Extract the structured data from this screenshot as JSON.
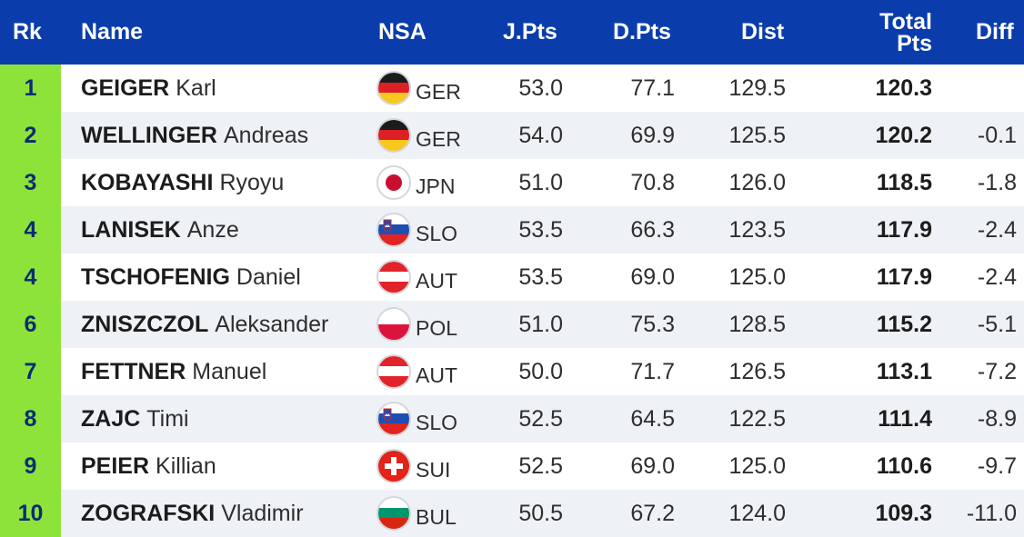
{
  "headers": {
    "rk": "Rk",
    "name": "Name",
    "nsa": "NSA",
    "jpts": "J.Pts",
    "dpts": "D.Pts",
    "dist": "Dist",
    "total_line1": "Total",
    "total_line2": "Pts",
    "diff": "Diff"
  },
  "rows": [
    {
      "rk": "1",
      "last": "GEIGER",
      "first": "Karl",
      "nsa": "GER",
      "flag": "germany-flag-icon",
      "jpts": "53.0",
      "dpts": "77.1",
      "dist": "129.5",
      "total": "120.3",
      "diff": ""
    },
    {
      "rk": "2",
      "last": "WELLINGER",
      "first": "Andreas",
      "nsa": "GER",
      "flag": "germany-flag-icon",
      "jpts": "54.0",
      "dpts": "69.9",
      "dist": "125.5",
      "total": "120.2",
      "diff": "-0.1"
    },
    {
      "rk": "3",
      "last": "KOBAYASHI",
      "first": "Ryoyu",
      "nsa": "JPN",
      "flag": "japan-flag-icon",
      "jpts": "51.0",
      "dpts": "70.8",
      "dist": "126.0",
      "total": "118.5",
      "diff": "-1.8"
    },
    {
      "rk": "4",
      "last": "LANISEK",
      "first": "Anze",
      "nsa": "SLO",
      "flag": "slovenia-flag-icon",
      "jpts": "53.5",
      "dpts": "66.3",
      "dist": "123.5",
      "total": "117.9",
      "diff": "-2.4"
    },
    {
      "rk": "4",
      "last": "TSCHOFENIG",
      "first": "Daniel",
      "nsa": "AUT",
      "flag": "austria-flag-icon",
      "jpts": "53.5",
      "dpts": "69.0",
      "dist": "125.0",
      "total": "117.9",
      "diff": "-2.4"
    },
    {
      "rk": "6",
      "last": "ZNISZCZOL",
      "first": "Aleksander",
      "nsa": "POL",
      "flag": "poland-flag-icon",
      "jpts": "51.0",
      "dpts": "75.3",
      "dist": "128.5",
      "total": "115.2",
      "diff": "-5.1"
    },
    {
      "rk": "7",
      "last": "FETTNER",
      "first": "Manuel",
      "nsa": "AUT",
      "flag": "austria-flag-icon",
      "jpts": "50.0",
      "dpts": "71.7",
      "dist": "126.5",
      "total": "113.1",
      "diff": "-7.2"
    },
    {
      "rk": "8",
      "last": "ZAJC",
      "first": "Timi",
      "nsa": "SLO",
      "flag": "slovenia-flag-icon",
      "jpts": "52.5",
      "dpts": "64.5",
      "dist": "122.5",
      "total": "111.4",
      "diff": "-8.9"
    },
    {
      "rk": "9",
      "last": "PEIER",
      "first": "Killian",
      "nsa": "SUI",
      "flag": "switzerland-flag-icon",
      "jpts": "52.5",
      "dpts": "69.0",
      "dist": "125.0",
      "total": "110.6",
      "diff": "-9.7"
    },
    {
      "rk": "10",
      "last": "ZOGRAFSKI",
      "first": "Vladimir",
      "nsa": "BUL",
      "flag": "bulgaria-flag-icon",
      "jpts": "50.5",
      "dpts": "67.2",
      "dist": "124.0",
      "total": "109.3",
      "diff": "-11.0"
    }
  ],
  "colors": {
    "header_bg": "#0a3dab",
    "rank_bg": "#8ee33a",
    "rank_text": "#0a2d73",
    "alt_row_bg": "#eef1f5"
  }
}
